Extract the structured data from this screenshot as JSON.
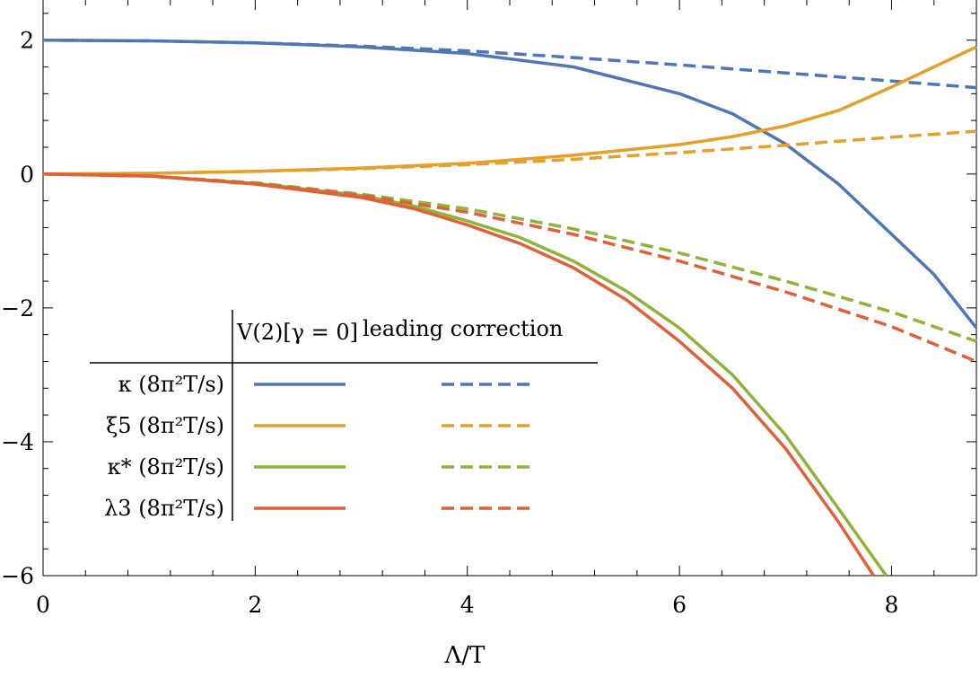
{
  "chart_data": {
    "type": "line",
    "xlabel": "Λ/T",
    "ylabel": "",
    "xlim": [
      0,
      8.8
    ],
    "ylim": [
      -6,
      2.6
    ],
    "x_ticks": [
      "0",
      "2",
      "4",
      "6",
      "8"
    ],
    "y_ticks": [
      "2",
      "0",
      "−2",
      "−4",
      "−6"
    ],
    "legend": {
      "placement": "lower-left",
      "column_headers": [
        "V(2)[γ = 0]",
        "leading correction"
      ],
      "row_labels": [
        "κ (8π²T/s)",
        "ξ5 (8π²T/s)",
        "κ* (8π²T/s)",
        "λ3 (8π²T/s)"
      ]
    },
    "x": [
      0,
      1,
      2,
      3,
      4,
      5,
      6,
      7,
      8,
      8.8
    ],
    "series": [
      {
        "name": "κ (8π²T/s)",
        "style": "solid",
        "color": "#5077b3",
        "x": [
          0,
          1,
          2,
          3,
          4,
          5,
          6,
          6.5,
          7,
          7.5,
          8,
          8.4,
          8.8
        ],
        "values": [
          2.0,
          1.99,
          1.96,
          1.9,
          1.8,
          1.6,
          1.2,
          0.9,
          0.45,
          -0.15,
          -0.9,
          -1.5,
          -2.3
        ]
      },
      {
        "name": "κ (8π²T/s)",
        "style": "dashed",
        "color": "#5077b3",
        "x": [
          0,
          1,
          2,
          3,
          4,
          5,
          6,
          7,
          8,
          8.8
        ],
        "values": [
          2.0,
          1.99,
          1.96,
          1.91,
          1.84,
          1.74,
          1.63,
          1.51,
          1.39,
          1.29
        ]
      },
      {
        "name": "ξ5 (8π²T/s)",
        "style": "solid",
        "color": "#e5a02a",
        "x": [
          0,
          1,
          2,
          3,
          4,
          5,
          6,
          6.5,
          7,
          7.5,
          8,
          8.4,
          8.8
        ],
        "values": [
          0,
          0.01,
          0.04,
          0.09,
          0.16,
          0.28,
          0.44,
          0.56,
          0.72,
          0.95,
          1.3,
          1.6,
          1.9
        ]
      },
      {
        "name": "ξ5 (8π²T/s)",
        "style": "dashed",
        "color": "#e5a02a",
        "x": [
          0,
          1,
          2,
          3,
          4,
          5,
          6,
          7,
          8,
          8.8
        ],
        "values": [
          0,
          0.01,
          0.04,
          0.08,
          0.14,
          0.22,
          0.32,
          0.43,
          0.55,
          0.64
        ]
      },
      {
        "name": "κ* (8π²T/s)",
        "style": "solid",
        "color": "#8db438",
        "x": [
          0,
          1,
          2,
          3,
          3.5,
          4,
          4.5,
          5,
          5.5,
          6,
          6.5,
          7,
          7.5,
          7.95
        ],
        "values": [
          0,
          -0.03,
          -0.14,
          -0.32,
          -0.48,
          -0.7,
          -0.95,
          -1.3,
          -1.75,
          -2.3,
          -3.0,
          -3.9,
          -5.0,
          -6.0
        ]
      },
      {
        "name": "κ* (8π²T/s)",
        "style": "dashed",
        "color": "#8db438",
        "x": [
          0,
          1,
          2,
          3,
          4,
          5,
          6,
          7,
          8,
          8.8
        ],
        "values": [
          0,
          -0.03,
          -0.13,
          -0.3,
          -0.52,
          -0.82,
          -1.18,
          -1.6,
          -2.06,
          -2.5
        ]
      },
      {
        "name": "λ3 (8π²T/s)",
        "style": "solid",
        "color": "#e15f39",
        "x": [
          0,
          1,
          2,
          3,
          3.5,
          4,
          4.5,
          5,
          5.5,
          6,
          6.5,
          7,
          7.5,
          7.83
        ],
        "values": [
          0,
          -0.03,
          -0.15,
          -0.35,
          -0.52,
          -0.76,
          -1.04,
          -1.4,
          -1.88,
          -2.5,
          -3.2,
          -4.1,
          -5.2,
          -6.0
        ]
      },
      {
        "name": "λ3 (8π²T/s)",
        "style": "dashed",
        "color": "#e15f39",
        "x": [
          0,
          1,
          2,
          3,
          4,
          5,
          6,
          7,
          8,
          8.8
        ],
        "values": [
          0,
          -0.03,
          -0.14,
          -0.32,
          -0.57,
          -0.9,
          -1.3,
          -1.76,
          -2.28,
          -2.8
        ]
      }
    ]
  }
}
